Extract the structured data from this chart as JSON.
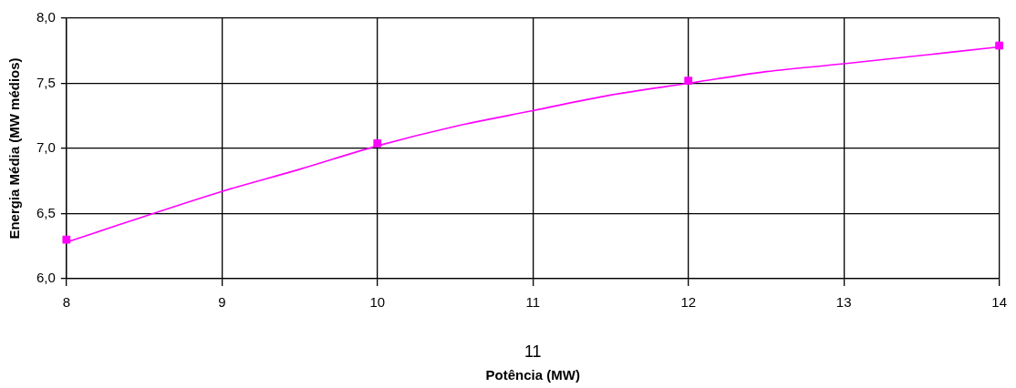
{
  "chart_data": {
    "type": "scatter",
    "xlabel": "Potência (MW)",
    "ylabel": "Energia Média (MW médios)",
    "annotations": [
      "11"
    ],
    "xlim": [
      8,
      14
    ],
    "xticks": [
      8,
      9,
      10,
      11,
      12,
      13,
      14
    ],
    "ylim": [
      6.0,
      8.0
    ],
    "yticks": [
      {
        "value": 6.0,
        "label": "6,0"
      },
      {
        "value": 6.5,
        "label": "6,5"
      },
      {
        "value": 7.0,
        "label": "7,0"
      },
      {
        "value": 7.5,
        "label": "7,5"
      },
      {
        "value": 8.0,
        "label": "8,0"
      }
    ],
    "grid": true,
    "legend": false,
    "series": [
      {
        "marker": "square",
        "color": "#ff00ff",
        "x": [
          8,
          10,
          12,
          14
        ],
        "values": [
          6.3,
          7.04,
          7.52,
          7.79
        ]
      },
      {
        "type": "line",
        "marker": "none",
        "color": "#ff00ff",
        "x": [
          8,
          9,
          9.5,
          10,
          10.5,
          11,
          11.5,
          12,
          12.5,
          13,
          14
        ],
        "values": [
          6.28,
          6.67,
          6.84,
          7.02,
          7.17,
          7.29,
          7.41,
          7.5,
          7.59,
          7.65,
          7.78
        ]
      }
    ]
  }
}
